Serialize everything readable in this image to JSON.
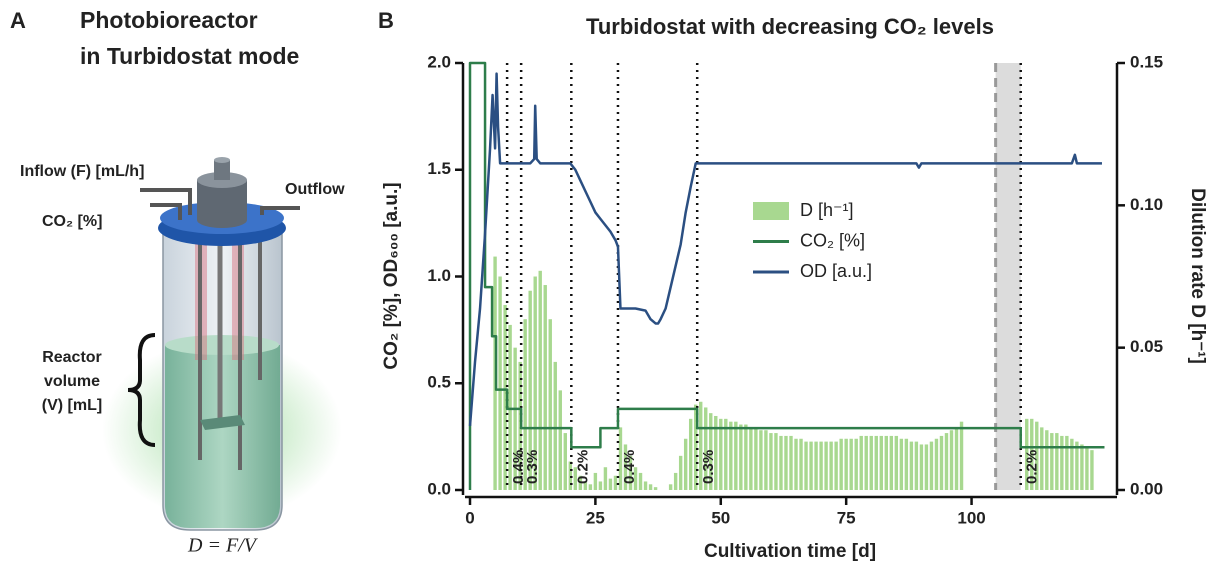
{
  "panel_a": {
    "label": "A",
    "title": [
      "Photobioreactor",
      "in Turbidostat mode"
    ],
    "inflow": "Inflow (F) [mL/h]",
    "co2": "CO₂ [%]",
    "outflow": "Outflow",
    "volume": [
      "Reactor",
      "volume",
      "(V) [mL]"
    ],
    "equation": "D = F/V"
  },
  "chart_data": {
    "type": "combo",
    "panel_label": "B",
    "title": "Turbidostat with decreasing CO₂ levels",
    "x_label": "Cultivation time [d]",
    "y_label": "CO₂ [%], OD₆₀₀ [a.u.]",
    "y2_label": "Dilution rate D [h⁻¹]",
    "xlim": [
      0,
      128
    ],
    "xticks": [
      0,
      25,
      50,
      75,
      100
    ],
    "ylim": [
      0,
      2
    ],
    "yticks": [
      {
        "value": 0,
        "label": "0.0"
      },
      {
        "value": 0.5,
        "label": "0.5"
      },
      {
        "value": 1,
        "label": "1.0"
      },
      {
        "value": 1.5,
        "label": "1.5"
      },
      {
        "value": 2,
        "label": "2.0"
      }
    ],
    "y2lim": [
      0,
      0.15
    ],
    "y2ticks": [
      {
        "value": 0,
        "label": "0.00"
      },
      {
        "value": 0.05,
        "label": "0.05"
      },
      {
        "value": 0.1,
        "label": "0.10"
      },
      {
        "value": 0.15,
        "label": "0.15"
      }
    ],
    "series": [
      {
        "name": "D [h⁻¹]",
        "type": "bar",
        "axis": "y2",
        "color": "#a8d890",
        "x": [
          5,
          6,
          7,
          8,
          9,
          10,
          11,
          12,
          13,
          14,
          15,
          16,
          17,
          18,
          19,
          20,
          21,
          22,
          23,
          24,
          25,
          26,
          27,
          28,
          29,
          30,
          31,
          32,
          33,
          34,
          35,
          36,
          37,
          38,
          39,
          40,
          41,
          42,
          43,
          44,
          45,
          46,
          47,
          48,
          49,
          50,
          51,
          52,
          53,
          54,
          55,
          56,
          57,
          58,
          59,
          60,
          61,
          62,
          63,
          64,
          65,
          66,
          67,
          68,
          69,
          70,
          71,
          72,
          73,
          74,
          75,
          76,
          77,
          78,
          79,
          80,
          81,
          82,
          83,
          84,
          85,
          86,
          87,
          88,
          89,
          90,
          91,
          92,
          93,
          94,
          95,
          96,
          97,
          98,
          111,
          112,
          113,
          114,
          115,
          116,
          117,
          118,
          119,
          120,
          121,
          122,
          123,
          124
        ],
        "values": [
          0.082,
          0.075,
          0.065,
          0.058,
          0.05,
          0.045,
          0.06,
          0.07,
          0.075,
          0.077,
          0.072,
          0.06,
          0.045,
          0.035,
          0.02,
          0.01,
          0.008,
          0.005,
          0.003,
          0.002,
          0.006,
          0.003,
          0.008,
          0.004,
          0.005,
          0.022,
          0.016,
          0.012,
          0.008,
          0.006,
          0.003,
          0.002,
          0.001,
          0,
          0,
          0.002,
          0.006,
          0.012,
          0.018,
          0.025,
          0.03,
          0.031,
          0.029,
          0.027,
          0.026,
          0.025,
          0.025,
          0.024,
          0.024,
          0.023,
          0.023,
          0.022,
          0.022,
          0.021,
          0.021,
          0.02,
          0.02,
          0.019,
          0.019,
          0.019,
          0.018,
          0.018,
          0.017,
          0.017,
          0.017,
          0.017,
          0.017,
          0.017,
          0.017,
          0.018,
          0.018,
          0.018,
          0.018,
          0.019,
          0.019,
          0.019,
          0.019,
          0.019,
          0.019,
          0.019,
          0.019,
          0.018,
          0.018,
          0.017,
          0.017,
          0.016,
          0.016,
          0.017,
          0.018,
          0.019,
          0.02,
          0.021,
          0.022,
          0.024,
          0.025,
          0.025,
          0.024,
          0.022,
          0.021,
          0.02,
          0.02,
          0.019,
          0.019,
          0.018,
          0.017,
          0.016,
          0.015,
          0.014
        ]
      },
      {
        "name": "CO₂ [%]",
        "type": "line",
        "color": "#2e7d4a",
        "x": [
          0,
          0,
          3,
          3,
          4.4,
          4.4,
          5.2,
          5.2,
          7.4,
          7.4,
          10.2,
          10.2,
          20.2,
          20.2,
          26,
          26,
          29.5,
          29.5,
          45.3,
          45.3,
          109.8,
          109.8,
          126.5
        ],
        "values": [
          0,
          2,
          2,
          0.95,
          0.95,
          0.72,
          0.72,
          0.47,
          0.47,
          0.38,
          0.38,
          0.29,
          0.29,
          0.2,
          0.2,
          0.29,
          0.29,
          0.38,
          0.38,
          0.29,
          0.29,
          0.2,
          0.2
        ]
      },
      {
        "name": "OD [a.u.]",
        "type": "line",
        "color": "#2b4f82",
        "x": [
          0,
          0.5,
          1,
          2,
          3,
          3.5,
          4,
          4.5,
          5,
          5.3,
          5.6,
          6,
          8,
          12,
          12.8,
          13,
          13.3,
          14,
          20,
          21,
          22,
          23,
          24,
          25,
          26,
          27,
          28,
          29,
          29.5,
          30,
          31,
          33,
          35,
          36,
          37,
          37.5,
          38,
          39,
          40,
          41,
          42,
          43,
          44,
          45,
          50,
          60,
          70,
          80,
          89,
          89.5,
          90,
          91,
          100,
          110,
          120,
          120.6,
          121,
          122,
          126
        ],
        "values": [
          0.3,
          0.45,
          0.6,
          0.85,
          1.2,
          1.4,
          1.6,
          1.85,
          1.6,
          1.95,
          1.7,
          1.53,
          1.53,
          1.53,
          1.55,
          1.8,
          1.55,
          1.53,
          1.53,
          1.5,
          1.45,
          1.4,
          1.35,
          1.3,
          1.27,
          1.24,
          1.21,
          1.17,
          1.14,
          0.85,
          0.85,
          0.85,
          0.84,
          0.8,
          0.78,
          0.78,
          0.8,
          0.85,
          0.95,
          1.05,
          1.15,
          1.3,
          1.42,
          1.53,
          1.53,
          1.53,
          1.53,
          1.53,
          1.53,
          1.51,
          1.53,
          1.53,
          1.53,
          1.53,
          1.53,
          1.57,
          1.53,
          1.53,
          1.53
        ]
      }
    ],
    "annotations": [
      {
        "text": "0.4%",
        "x": 7.4
      },
      {
        "text": "0.3%",
        "x": 10.2
      },
      {
        "text": "0.2%",
        "x": 20.2
      },
      {
        "text": "0.4%",
        "x": 29.5
      },
      {
        "text": "0.3%",
        "x": 45.3
      },
      {
        "text": "0.2%",
        "x": 109.8
      }
    ],
    "highlight": [
      104.8,
      109.8
    ],
    "legend": "center"
  }
}
